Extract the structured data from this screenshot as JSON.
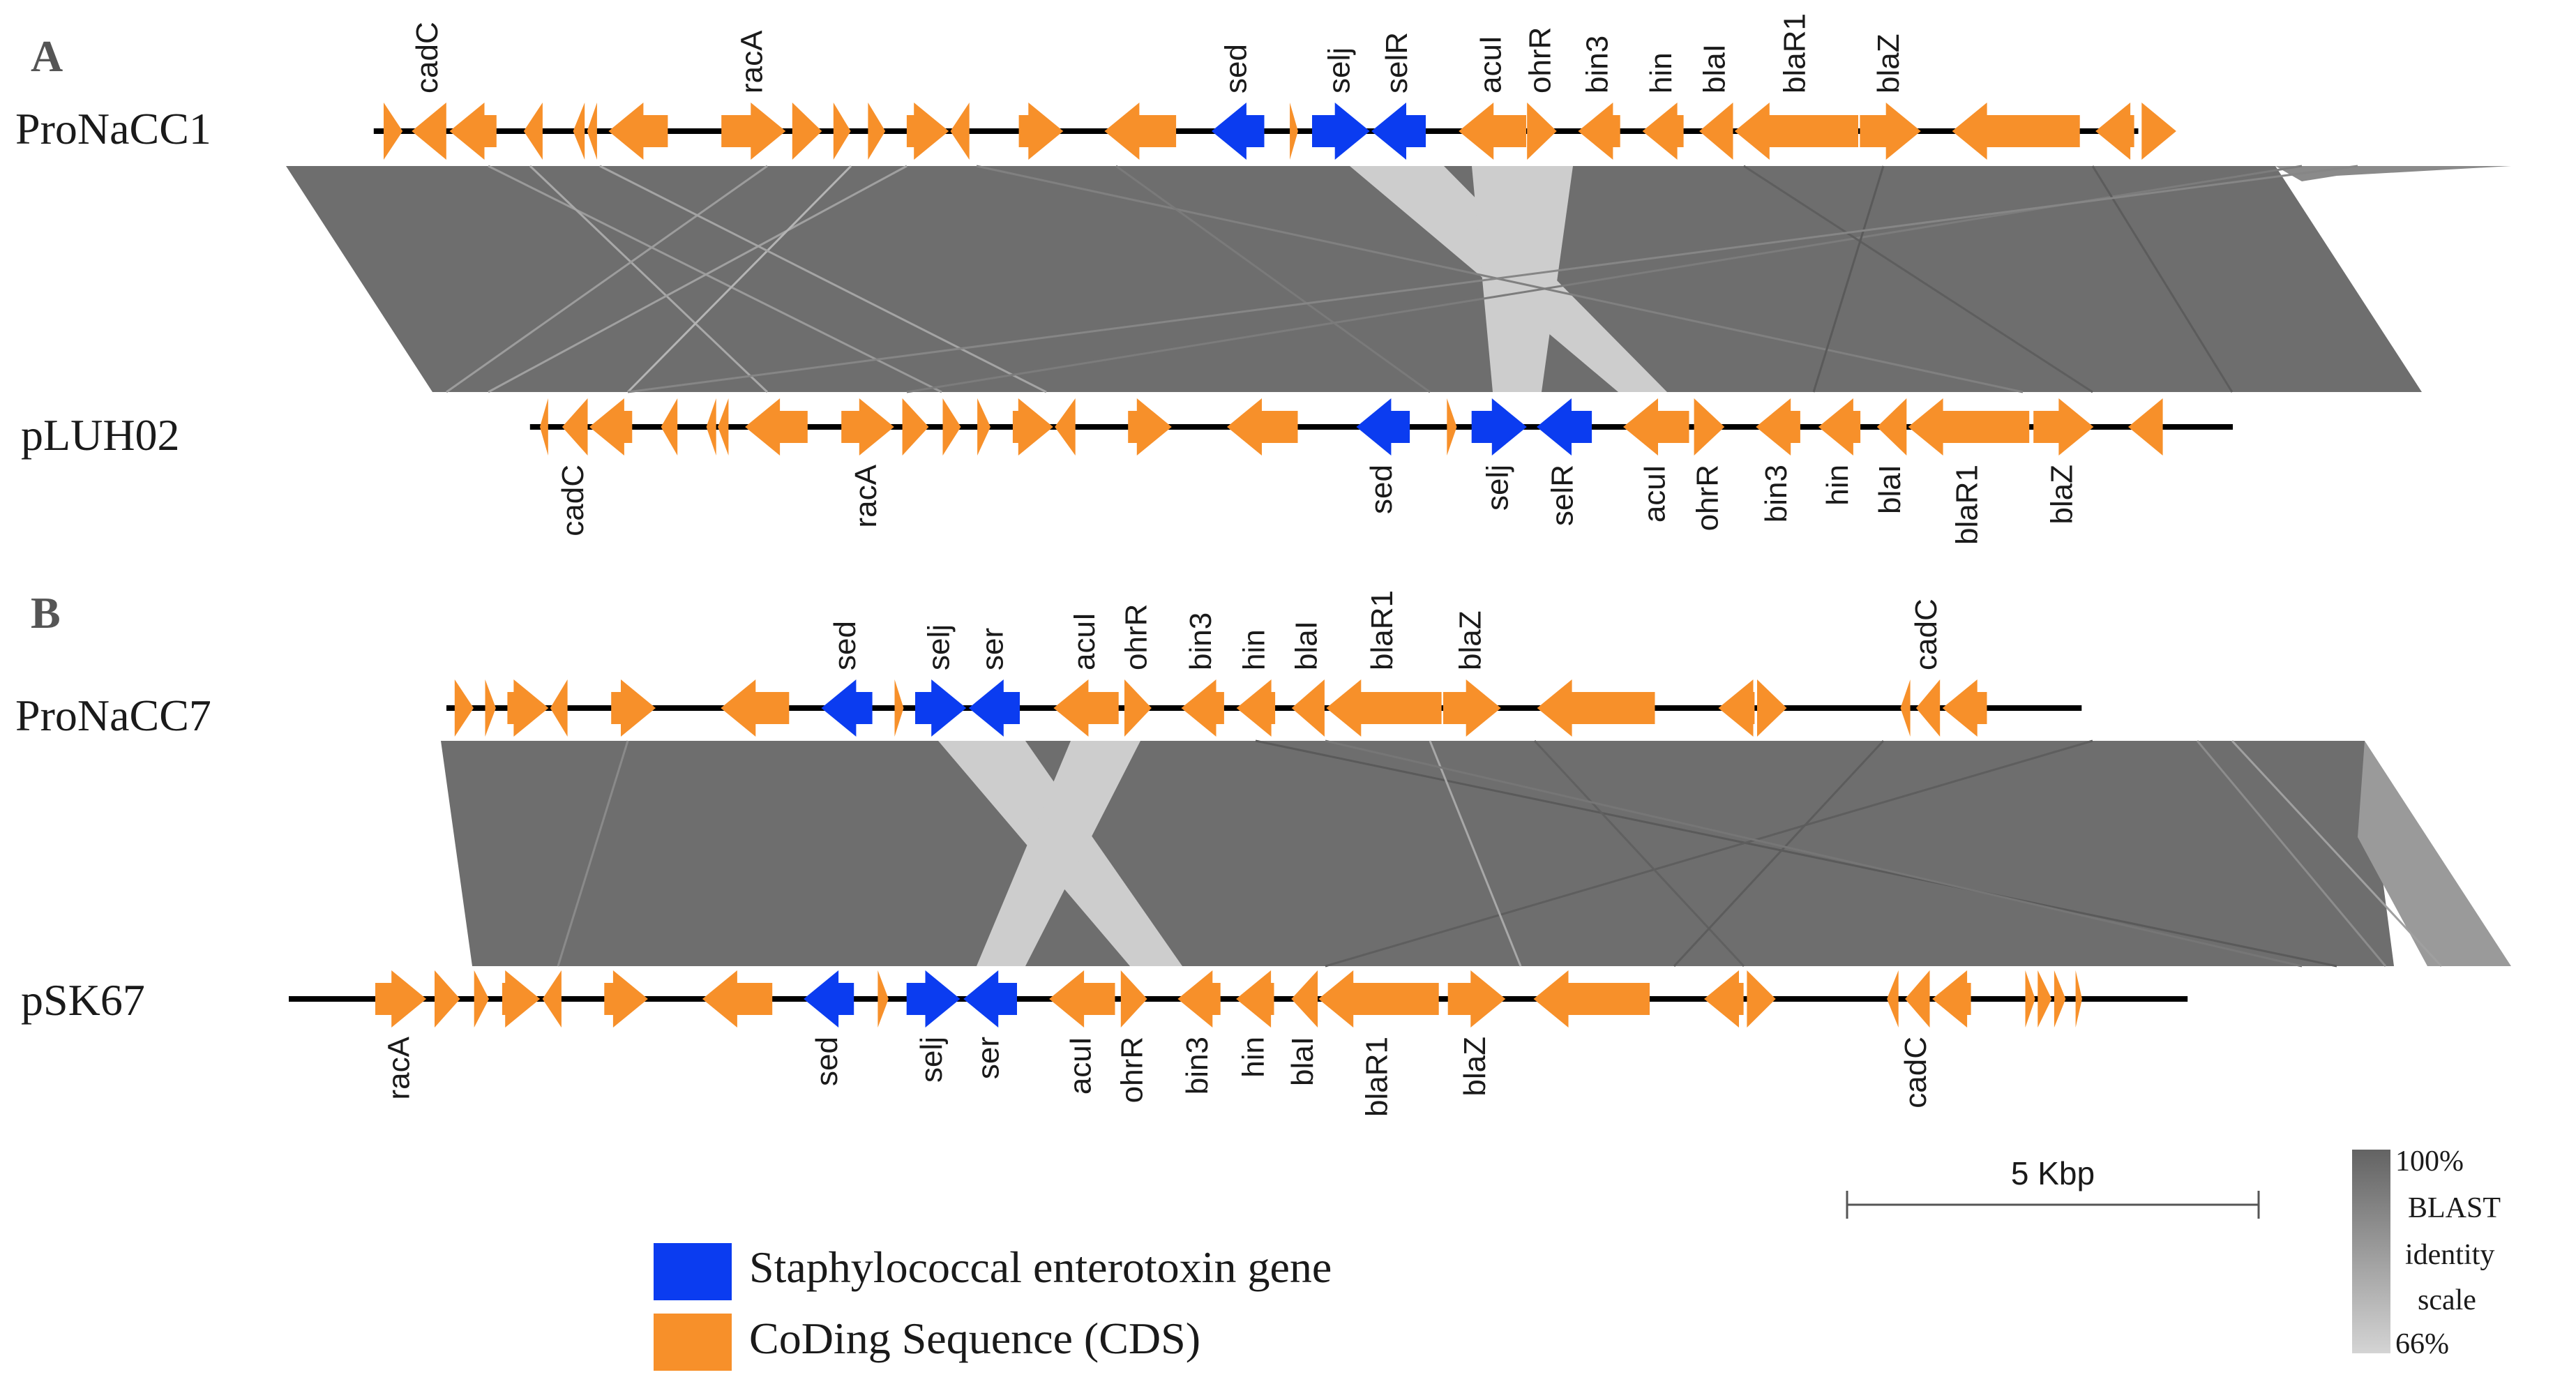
{
  "panels": [
    {
      "letter": "A",
      "tracks": [
        {
          "name": "ProNaCC1",
          "bp_start": -120,
          "bp_end": 21300,
          "genes": [
            {
              "start": 0,
              "end": 230,
              "strand": 1,
              "type": "cds"
            },
            {
              "start": 340,
              "end": 760,
              "strand": -1,
              "type": "cds",
              "label": "cadC"
            },
            {
              "start": 800,
              "end": 1370,
              "strand": -1,
              "type": "cds"
            },
            {
              "start": 1700,
              "end": 1930,
              "strand": -1,
              "type": "cds"
            },
            {
              "start": 2300,
              "end": 2440,
              "strand": -1,
              "type": "cds"
            },
            {
              "start": 2470,
              "end": 2590,
              "strand": -1,
              "type": "cds"
            },
            {
              "start": 2730,
              "end": 3450,
              "strand": -1,
              "type": "cds"
            },
            {
              "start": 4100,
              "end": 4880,
              "strand": 1,
              "type": "cds",
              "label": "racA"
            },
            {
              "start": 4960,
              "end": 5320,
              "strand": 1,
              "type": "cds"
            },
            {
              "start": 5460,
              "end": 5670,
              "strand": 1,
              "type": "cds"
            },
            {
              "start": 5880,
              "end": 6090,
              "strand": 1,
              "type": "cds"
            },
            {
              "start": 6350,
              "end": 6860,
              "strand": 1,
              "type": "cds"
            },
            {
              "start": 6880,
              "end": 7110,
              "strand": -1,
              "type": "cds"
            },
            {
              "start": 7710,
              "end": 8250,
              "strand": 1,
              "type": "cds"
            },
            {
              "start": 8750,
              "end": 9620,
              "strand": -1,
              "type": "cds"
            },
            {
              "start": 10050,
              "end": 10690,
              "strand": -1,
              "type": "toxin",
              "label": "sed"
            },
            {
              "start": 11000,
              "end": 11100,
              "strand": 1,
              "type": "cds"
            },
            {
              "start": 11270,
              "end": 11970,
              "strand": 1,
              "type": "toxin",
              "label": "selj"
            },
            {
              "start": 11990,
              "end": 12650,
              "strand": -1,
              "type": "toxin",
              "label": "selR"
            },
            {
              "start": 13050,
              "end": 13870,
              "strand": -1,
              "type": "cds",
              "label": "acuI"
            },
            {
              "start": 13880,
              "end": 14240,
              "strand": 1,
              "type": "cds",
              "label": "ohrR"
            },
            {
              "start": 14500,
              "end": 15010,
              "strand": -1,
              "type": "cds",
              "label": "bin3"
            },
            {
              "start": 15280,
              "end": 15780,
              "strand": -1,
              "type": "cds",
              "label": "hin"
            },
            {
              "start": 15970,
              "end": 16380,
              "strand": -1,
              "type": "cds",
              "label": "blaI"
            },
            {
              "start": 16400,
              "end": 17900,
              "strand": -1,
              "type": "cds",
              "label": "blaR1"
            },
            {
              "start": 17920,
              "end": 18660,
              "strand": 1,
              "type": "cds",
              "label": "blaZ"
            },
            {
              "start": 19040,
              "end": 20590,
              "strand": -1,
              "type": "cds"
            },
            {
              "start": 20780,
              "end": 21250,
              "strand": -1,
              "type": "cds"
            },
            {
              "start": 21340,
              "end": 21760,
              "strand": 1,
              "type": "cds"
            }
          ]
        },
        {
          "name": "pLUH02",
          "bp_start": -120,
          "bp_end": 20550,
          "genes": [
            {
              "start": 0,
              "end": 100,
              "strand": -1,
              "type": "cds"
            },
            {
              "start": 270,
              "end": 580,
              "strand": -1,
              "type": "cds",
              "label": "cadC"
            },
            {
              "start": 600,
              "end": 1120,
              "strand": -1,
              "type": "cds"
            },
            {
              "start": 1470,
              "end": 1670,
              "strand": -1,
              "type": "cds"
            },
            {
              "start": 2020,
              "end": 2140,
              "strand": -1,
              "type": "cds"
            },
            {
              "start": 2160,
              "end": 2290,
              "strand": -1,
              "type": "cds"
            },
            {
              "start": 2490,
              "end": 3250,
              "strand": -1,
              "type": "cds"
            },
            {
              "start": 3660,
              "end": 4300,
              "strand": 1,
              "type": "cds",
              "label": "racA"
            },
            {
              "start": 4400,
              "end": 4720,
              "strand": 1,
              "type": "cds"
            },
            {
              "start": 4890,
              "end": 5110,
              "strand": 1,
              "type": "cds"
            },
            {
              "start": 5310,
              "end": 5470,
              "strand": 1,
              "type": "cds"
            },
            {
              "start": 5740,
              "end": 6230,
              "strand": 1,
              "type": "cds"
            },
            {
              "start": 6250,
              "end": 6500,
              "strand": -1,
              "type": "cds"
            },
            {
              "start": 7140,
              "end": 7670,
              "strand": 1,
              "type": "cds"
            },
            {
              "start": 8340,
              "end": 9200,
              "strand": -1,
              "type": "cds"
            },
            {
              "start": 9910,
              "end": 10560,
              "strand": -1,
              "type": "toxin",
              "label": "sed"
            },
            {
              "start": 11010,
              "end": 11130,
              "strand": 1,
              "type": "cds"
            },
            {
              "start": 11310,
              "end": 11980,
              "strand": 1,
              "type": "toxin",
              "label": "selj"
            },
            {
              "start": 12100,
              "end": 12770,
              "strand": -1,
              "type": "toxin",
              "label": "selR"
            },
            {
              "start": 13150,
              "end": 13950,
              "strand": -1,
              "type": "cds",
              "label": "acuI"
            },
            {
              "start": 14010,
              "end": 14380,
              "strand": 1,
              "type": "cds",
              "label": "ohrR"
            },
            {
              "start": 14760,
              "end": 15300,
              "strand": -1,
              "type": "cds",
              "label": "bin3"
            },
            {
              "start": 15520,
              "end": 16030,
              "strand": -1,
              "type": "cds",
              "label": "hin"
            },
            {
              "start": 16230,
              "end": 16590,
              "strand": -1,
              "type": "cds",
              "label": "blaI"
            },
            {
              "start": 16610,
              "end": 18080,
              "strand": -1,
              "type": "cds",
              "label": "blaR1"
            },
            {
              "start": 18130,
              "end": 18860,
              "strand": 1,
              "type": "cds",
              "label": "blaZ"
            },
            {
              "start": 19280,
              "end": 19700,
              "strand": -1,
              "type": "cds"
            }
          ]
        }
      ]
    },
    {
      "letter": "B",
      "tracks": [
        {
          "name": "ProNaCC7",
          "bp_start": 0,
          "bp_end": 19850,
          "genes": [
            {
              "start": 100,
              "end": 330,
              "strand": 1,
              "type": "cds"
            },
            {
              "start": 470,
              "end": 600,
              "strand": 1,
              "type": "cds"
            },
            {
              "start": 740,
              "end": 1240,
              "strand": 1,
              "type": "cds"
            },
            {
              "start": 1260,
              "end": 1470,
              "strand": -1,
              "type": "cds"
            },
            {
              "start": 2000,
              "end": 2540,
              "strand": 1,
              "type": "cds"
            },
            {
              "start": 3330,
              "end": 4160,
              "strand": -1,
              "type": "cds"
            },
            {
              "start": 4550,
              "end": 5170,
              "strand": -1,
              "type": "toxin",
              "label": "sed"
            },
            {
              "start": 5440,
              "end": 5550,
              "strand": 1,
              "type": "cds"
            },
            {
              "start": 5690,
              "end": 6310,
              "strand": 1,
              "type": "toxin",
              "label": "selj"
            },
            {
              "start": 6340,
              "end": 6960,
              "strand": -1,
              "type": "toxin",
              "label": "ser"
            },
            {
              "start": 7370,
              "end": 8160,
              "strand": -1,
              "type": "cds",
              "label": "acuI"
            },
            {
              "start": 8230,
              "end": 8560,
              "strand": 1,
              "type": "cds",
              "label": "ohrR"
            },
            {
              "start": 8920,
              "end": 9440,
              "strand": -1,
              "type": "cds",
              "label": "bin3"
            },
            {
              "start": 9590,
              "end": 10060,
              "strand": -1,
              "type": "cds",
              "label": "hin"
            },
            {
              "start": 10260,
              "end": 10660,
              "strand": -1,
              "type": "cds",
              "label": "blaI"
            },
            {
              "start": 10680,
              "end": 12080,
              "strand": -1,
              "type": "cds",
              "label": "blaR1"
            },
            {
              "start": 12100,
              "end": 12800,
              "strand": 1,
              "type": "cds",
              "label": "blaZ"
            },
            {
              "start": 13240,
              "end": 14670,
              "strand": -1,
              "type": "cds"
            },
            {
              "start": 15440,
              "end": 15880,
              "strand": -1,
              "type": "cds"
            },
            {
              "start": 15910,
              "end": 16270,
              "strand": 1,
              "type": "cds"
            },
            {
              "start": 17650,
              "end": 17770,
              "strand": -1,
              "type": "cds"
            },
            {
              "start": 17840,
              "end": 18130,
              "strand": -1,
              "type": "cds",
              "label": "cadC"
            },
            {
              "start": 18160,
              "end": 18700,
              "strand": -1,
              "type": "cds"
            }
          ]
        },
        {
          "name": "pSK67",
          "bp_start": -1050,
          "bp_end": 22000,
          "genes": [
            {
              "start": 0,
              "end": 620,
              "strand": 1,
              "type": "cds",
              "label": "racA"
            },
            {
              "start": 720,
              "end": 1030,
              "strand": 1,
              "type": "cds"
            },
            {
              "start": 1200,
              "end": 1380,
              "strand": 1,
              "type": "cds"
            },
            {
              "start": 1540,
              "end": 2000,
              "strand": 1,
              "type": "cds"
            },
            {
              "start": 2030,
              "end": 2260,
              "strand": -1,
              "type": "cds"
            },
            {
              "start": 2780,
              "end": 3310,
              "strand": 1,
              "type": "cds"
            },
            {
              "start": 3970,
              "end": 4820,
              "strand": -1,
              "type": "cds"
            },
            {
              "start": 5200,
              "end": 5810,
              "strand": -1,
              "type": "toxin",
              "label": "sed"
            },
            {
              "start": 6100,
              "end": 6230,
              "strand": 1,
              "type": "cds"
            },
            {
              "start": 6450,
              "end": 7100,
              "strand": 1,
              "type": "toxin",
              "label": "selj"
            },
            {
              "start": 7140,
              "end": 7790,
              "strand": -1,
              "type": "toxin",
              "label": "ser"
            },
            {
              "start": 8180,
              "end": 8980,
              "strand": -1,
              "type": "cds",
              "label": "acuI"
            },
            {
              "start": 9050,
              "end": 9370,
              "strand": 1,
              "type": "cds",
              "label": "ohrR"
            },
            {
              "start": 9740,
              "end": 10260,
              "strand": -1,
              "type": "cds",
              "label": "bin3"
            },
            {
              "start": 10450,
              "end": 10910,
              "strand": -1,
              "type": "cds",
              "label": "hin"
            },
            {
              "start": 11120,
              "end": 11440,
              "strand": -1,
              "type": "cds",
              "label": "blaI"
            },
            {
              "start": 11450,
              "end": 12910,
              "strand": -1,
              "type": "cds",
              "label": "blaR1"
            },
            {
              "start": 13020,
              "end": 13720,
              "strand": 1,
              "type": "cds",
              "label": "blaZ"
            },
            {
              "start": 14060,
              "end": 15470,
              "strand": -1,
              "type": "cds"
            },
            {
              "start": 16130,
              "end": 16610,
              "strand": -1,
              "type": "cds"
            },
            {
              "start": 16650,
              "end": 17000,
              "strand": 1,
              "type": "cds"
            },
            {
              "start": 18350,
              "end": 18490,
              "strand": -1,
              "type": "cds"
            },
            {
              "start": 18570,
              "end": 18870,
              "strand": -1,
              "type": "cds",
              "label": "cadC"
            },
            {
              "start": 18900,
              "end": 19370,
              "strand": -1,
              "type": "cds"
            },
            {
              "start": 20030,
              "end": 20150,
              "strand": 1,
              "type": "cds"
            },
            {
              "start": 20180,
              "end": 20350,
              "strand": 1,
              "type": "cds"
            },
            {
              "start": 20380,
              "end": 20520,
              "strand": 1,
              "type": "cds"
            },
            {
              "start": 20640,
              "end": 20720,
              "strand": 1,
              "type": "cds"
            }
          ]
        }
      ]
    }
  ],
  "legend": [
    {
      "type": "toxin",
      "label": "Staphylococcal enterotoxin gene",
      "color": "#0b3cf0"
    },
    {
      "type": "cds",
      "label": "CoDing Sequence (CDS)",
      "color": "#f7902a"
    }
  ],
  "scale_bar": {
    "label": "5 Kbp",
    "length_bp": 5000
  },
  "identity_scale": {
    "max_label": "100%",
    "min_label": "66%",
    "title": [
      "BLAST",
      "identity",
      "scale"
    ],
    "max_color": "#636363",
    "min_color": "#d4d4d4"
  },
  "colors": {
    "toxin": "#0b3cf0",
    "cds": "#f7902a",
    "backbone": "#000000",
    "homology": "#6e6e6e",
    "homology_light": "#cdcdcd"
  }
}
